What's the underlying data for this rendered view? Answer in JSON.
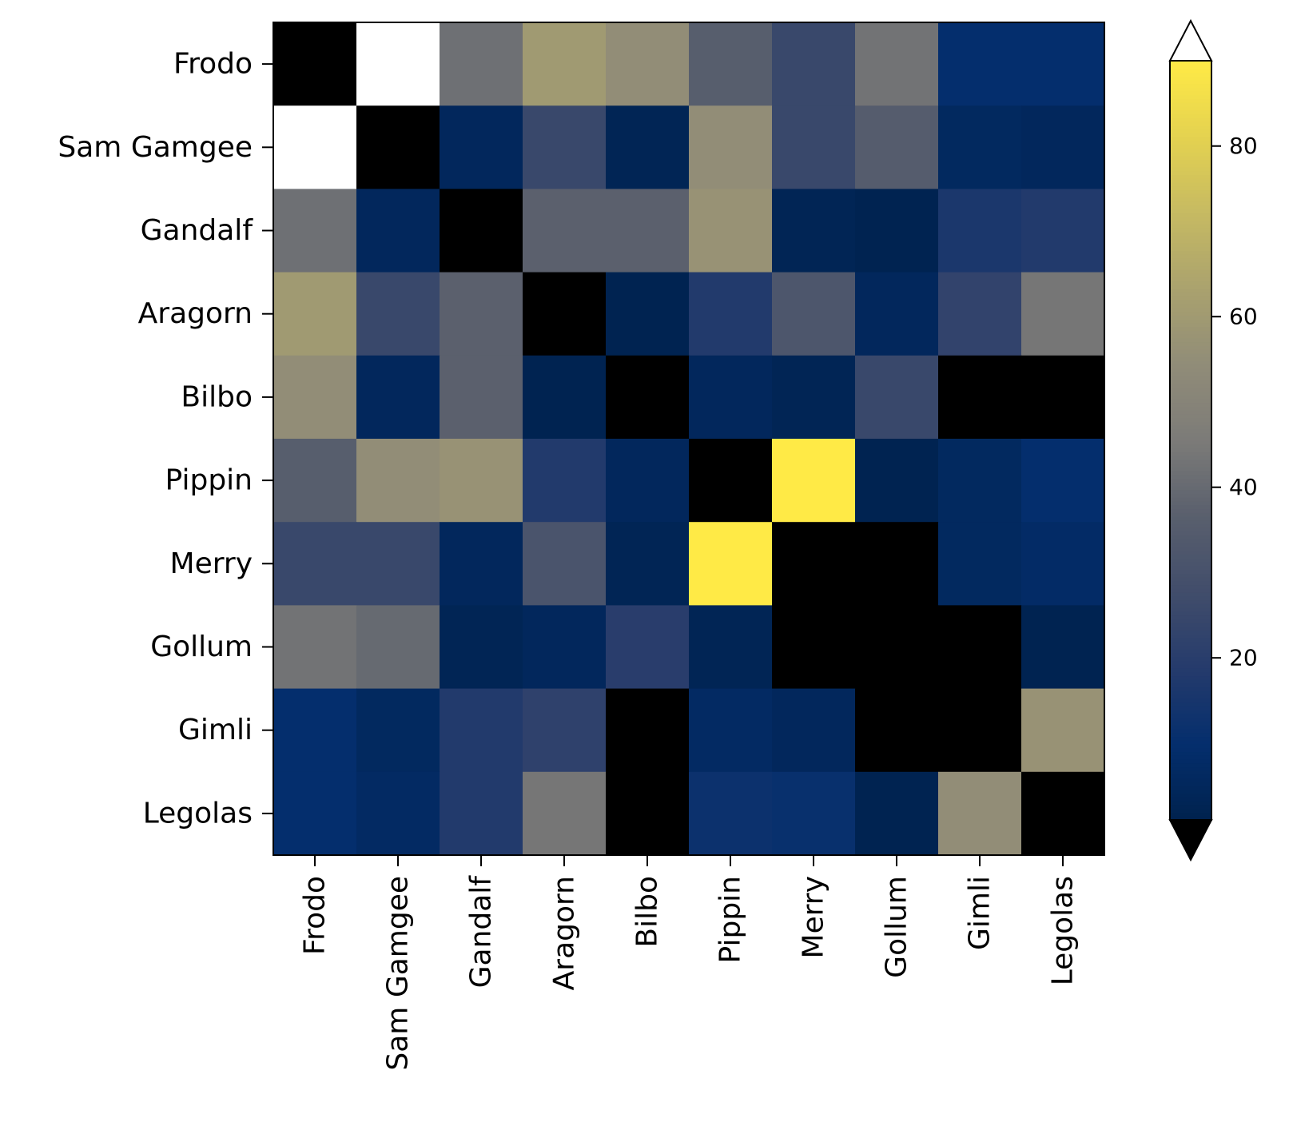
{
  "chart_data": {
    "type": "heatmap",
    "title": "",
    "xlabel": "",
    "ylabel": "",
    "rows": [
      "Frodo",
      "Sam Gamgee",
      "Gandalf",
      "Aragorn",
      "Bilbo",
      "Pippin",
      "Merry",
      "Gollum",
      "Gimli",
      "Legolas"
    ],
    "columns": [
      "Frodo",
      "Sam Gamgee",
      "Gandalf",
      "Aragorn",
      "Bilbo",
      "Pippin",
      "Merry",
      "Gollum",
      "Gimli",
      "Legolas"
    ],
    "values": [
      [
        0,
        100,
        42,
        60,
        55,
        36,
        25,
        43,
        10,
        10
      ],
      [
        100,
        0,
        5,
        25,
        3,
        55,
        25,
        35,
        6,
        5
      ],
      [
        42,
        5,
        0,
        37,
        37,
        57,
        3,
        2,
        16,
        18
      ],
      [
        60,
        25,
        37,
        0,
        2,
        18,
        32,
        5,
        23,
        44
      ],
      [
        55,
        5,
        37,
        2,
        0,
        5,
        3,
        25,
        0,
        0
      ],
      [
        36,
        55,
        57,
        18,
        5,
        0,
        90,
        2,
        6,
        10
      ],
      [
        25,
        25,
        5,
        31,
        3,
        90,
        0,
        0,
        6,
        8
      ],
      [
        43,
        40,
        3,
        5,
        20,
        3,
        0,
        0,
        0,
        2
      ],
      [
        10,
        6,
        18,
        22,
        0,
        7,
        5,
        0,
        0,
        57
      ],
      [
        10,
        7,
        18,
        44,
        0,
        12,
        11,
        2,
        55,
        0
      ]
    ],
    "colormap": "cividis",
    "color_range": [
      1,
      90
    ],
    "under_color": "#000000",
    "over_color": "#ffffff",
    "colorbar": {
      "ticks": [
        20,
        40,
        60,
        80
      ],
      "tick_labels": [
        "20",
        "40",
        "60",
        "80"
      ],
      "extend": "both"
    }
  }
}
